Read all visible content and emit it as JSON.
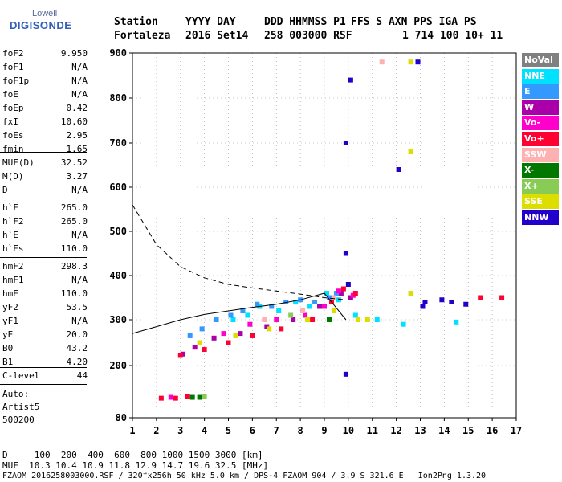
{
  "logo": {
    "line1": "Lowell",
    "line2": "DIGISONDE"
  },
  "header": {
    "labels": [
      "Station",
      "YYYY DAY",
      "DDD HHMMSS P1",
      "FFS S AXN PPS IGA PS"
    ],
    "values": [
      "Fortaleza",
      "2016 Set14",
      "258 003000 RSF",
      "1 714 100 10+ 11"
    ]
  },
  "params": [
    {
      "label": "foF2",
      "value": "9.950"
    },
    {
      "label": "foF1",
      "value": "N/A"
    },
    {
      "label": "foF1p",
      "value": "N/A"
    },
    {
      "label": "foE",
      "value": "N/A"
    },
    {
      "label": "foEp",
      "value": "0.42"
    },
    {
      "label": "fxI",
      "value": "10.60"
    },
    {
      "label": "foEs",
      "value": "2.95"
    },
    {
      "label": "fmin",
      "value": "1.65"
    },
    {
      "label": "MUF(D)",
      "value": "32.52"
    },
    {
      "label": "M(D)",
      "value": "3.27"
    },
    {
      "label": "D",
      "value": "N/A"
    },
    {
      "label": "h`F",
      "value": "265.0"
    },
    {
      "label": "h`F2",
      "value": "265.0"
    },
    {
      "label": "h`E",
      "value": "N/A"
    },
    {
      "label": "h`Es",
      "value": "110.0"
    },
    {
      "label": "hmF2",
      "value": "298.3"
    },
    {
      "label": "hmF1",
      "value": "N/A"
    },
    {
      "label": "hmE",
      "value": "110.0"
    },
    {
      "label": "yF2",
      "value": "53.5"
    },
    {
      "label": "yF1",
      "value": "N/A"
    },
    {
      "label": "yE",
      "value": "20.0"
    },
    {
      "label": "B0",
      "value": "43.2"
    },
    {
      "label": "B1",
      "value": "4.20"
    },
    {
      "label": "C-level",
      "value": "44"
    }
  ],
  "auto": {
    "line1": "Auto:",
    "line2": "Artist5",
    "line3": "500200"
  },
  "footer": {
    "d_row": "D     100  200  400  600  800 1000 1500 3000 [km]",
    "muf_row": "MUF  10.3 10.4 10.9 11.8 12.9 14.7 19.6 32.5 [MHz]",
    "file_row": "FZAOM_2016258003000.RSF / 320fx256h 50 kHz 5.0 km / DPS-4 FZAOM 904 / 3.9 S 321.6 E   Ion2Png 1.3.20"
  },
  "legend": [
    {
      "label": "NoVal",
      "color": "#808080"
    },
    {
      "label": "NNE",
      "color": "#00e0ff"
    },
    {
      "label": "E",
      "color": "#3399ff"
    },
    {
      "label": "W",
      "color": "#aa00aa"
    },
    {
      "label": "Vo-",
      "color": "#ff00cc"
    },
    {
      "label": "Vo+",
      "color": "#ff0033"
    },
    {
      "label": "SSW",
      "color": "#ffb0b0"
    },
    {
      "label": "X-",
      "color": "#007700"
    },
    {
      "label": "X+",
      "color": "#88cc55"
    },
    {
      "label": "SSE",
      "color": "#dddd00"
    },
    {
      "label": "NNW",
      "color": "#2200cc"
    }
  ],
  "chart_data": {
    "type": "scatter",
    "xlim": [
      1,
      17
    ],
    "ylim": [
      80,
      900
    ],
    "x_ticks": [
      "1",
      "2",
      "3",
      "4",
      "5",
      "6",
      "7",
      "8",
      "9",
      "10",
      "11",
      "12",
      "13",
      "14",
      "15",
      "16",
      "17"
    ],
    "y_ticks": [
      "80",
      "200",
      "300",
      "400",
      "500",
      "600",
      "700",
      "800",
      "900"
    ],
    "grid": true,
    "legend_position": "right",
    "series": [
      {
        "name": "NNE",
        "values": [
          [
            5.2,
            300
          ],
          [
            5.8,
            310
          ],
          [
            6.3,
            330
          ],
          [
            7.1,
            320
          ],
          [
            7.8,
            340
          ],
          [
            8.4,
            330
          ],
          [
            9.1,
            360
          ],
          [
            9.6,
            345
          ],
          [
            10.3,
            310
          ],
          [
            11.2,
            300
          ],
          [
            12.3,
            290
          ],
          [
            14.5,
            295
          ]
        ]
      },
      {
        "name": "E",
        "values": [
          [
            3.4,
            265
          ],
          [
            3.9,
            280
          ],
          [
            4.5,
            300
          ],
          [
            5.1,
            310
          ],
          [
            5.6,
            320
          ],
          [
            6.2,
            335
          ],
          [
            6.8,
            330
          ],
          [
            7.4,
            340
          ],
          [
            8.0,
            345
          ],
          [
            8.6,
            340
          ],
          [
            9.2,
            350
          ],
          [
            9.5,
            360
          ]
        ]
      },
      {
        "name": "W",
        "values": [
          [
            3.1,
            225
          ],
          [
            3.6,
            240
          ],
          [
            4.4,
            260
          ],
          [
            5.5,
            270
          ],
          [
            6.6,
            285
          ],
          [
            7.7,
            300
          ],
          [
            8.8,
            330
          ],
          [
            9.7,
            360
          ],
          [
            10.1,
            350
          ]
        ]
      },
      {
        "name": "Vo-",
        "values": [
          [
            4.8,
            270
          ],
          [
            5.9,
            290
          ],
          [
            7.0,
            300
          ],
          [
            8.2,
            310
          ],
          [
            9.0,
            330
          ],
          [
            9.6,
            365
          ],
          [
            10.2,
            355
          ],
          [
            2.6,
            127
          ]
        ]
      },
      {
        "name": "Vo+",
        "values": [
          [
            2.2,
            125
          ],
          [
            2.8,
            125
          ],
          [
            3.3,
            128
          ],
          [
            3.0,
            222
          ],
          [
            4.0,
            235
          ],
          [
            5.0,
            250
          ],
          [
            6.0,
            265
          ],
          [
            7.2,
            280
          ],
          [
            8.5,
            300
          ],
          [
            9.3,
            340
          ],
          [
            9.8,
            370
          ],
          [
            10.3,
            360
          ],
          [
            15.5,
            350
          ],
          [
            16.4,
            350
          ]
        ]
      },
      {
        "name": "SSW",
        "values": [
          [
            6.5,
            300
          ],
          [
            8.1,
            320
          ],
          [
            9.4,
            350
          ],
          [
            11.4,
            880
          ]
        ]
      },
      {
        "name": "X-",
        "values": [
          [
            3.5,
            127
          ],
          [
            3.8,
            127
          ],
          [
            9.2,
            300
          ]
        ]
      },
      {
        "name": "X+",
        "values": [
          [
            4.0,
            128
          ],
          [
            7.6,
            310
          ]
        ]
      },
      {
        "name": "SSE",
        "values": [
          [
            3.8,
            250
          ],
          [
            5.3,
            265
          ],
          [
            6.7,
            280
          ],
          [
            8.3,
            300
          ],
          [
            9.4,
            320
          ],
          [
            10.4,
            300
          ],
          [
            10.8,
            300
          ],
          [
            12.6,
            360
          ],
          [
            12.6,
            680
          ],
          [
            12.6,
            880
          ]
        ]
      },
      {
        "name": "NNW",
        "values": [
          [
            9.9,
            700
          ],
          [
            9.9,
            450
          ],
          [
            9.9,
            180
          ],
          [
            10.0,
            380
          ],
          [
            10.1,
            840
          ],
          [
            13.2,
            340
          ],
          [
            13.9,
            345
          ],
          [
            14.3,
            340
          ],
          [
            14.9,
            335
          ],
          [
            12.9,
            880
          ],
          [
            12.1,
            640
          ],
          [
            13.1,
            330
          ]
        ]
      }
    ],
    "profile_curve": [
      [
        1,
        270
      ],
      [
        2,
        285
      ],
      [
        3,
        300
      ],
      [
        4,
        312
      ],
      [
        5,
        320
      ],
      [
        6,
        328
      ],
      [
        7,
        335
      ],
      [
        8,
        345
      ],
      [
        9,
        360
      ],
      [
        9.9,
        300
      ]
    ],
    "extrapolation_curve": [
      [
        1,
        560
      ],
      [
        2,
        470
      ],
      [
        3,
        420
      ],
      [
        4,
        395
      ],
      [
        5,
        380
      ],
      [
        6,
        372
      ],
      [
        7,
        365
      ],
      [
        8,
        358
      ],
      [
        9,
        350
      ],
      [
        9.9,
        345
      ]
    ]
  }
}
